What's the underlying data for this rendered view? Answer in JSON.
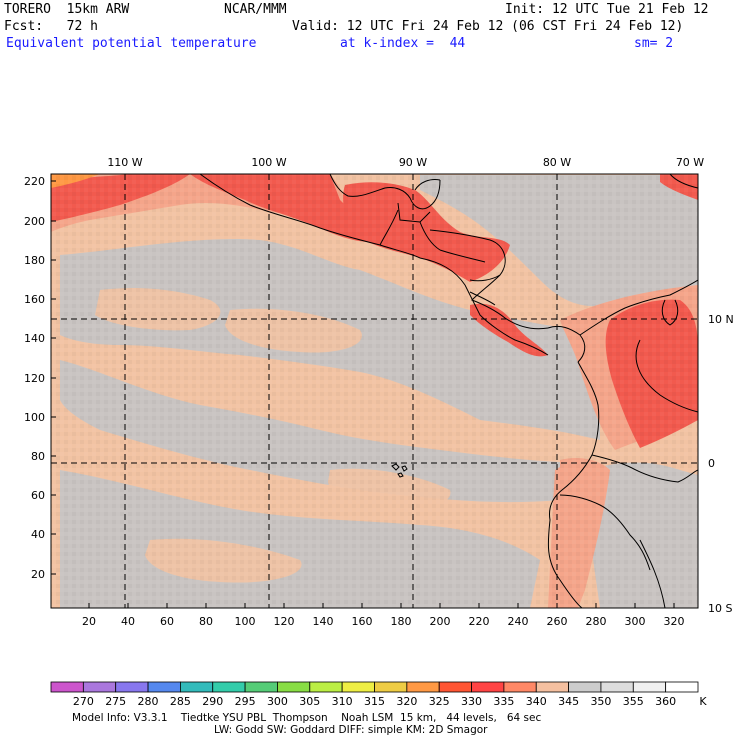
{
  "header": {
    "model": "TORERO  15km ARW",
    "center": "NCAR/MMM",
    "init": "Init: 12 UTC Tue 21 Feb 12",
    "fcst": "Fcst:   72 h",
    "valid": "Valid: 12 UTC Fri 24 Feb 12 (06 CST Fri 24 Feb 12)",
    "field": "Equivalent potential temperature",
    "level": "at k-index =  44",
    "smooth": "sm= 2"
  },
  "map": {
    "top_lon_labels": [
      "110 W",
      "100 W",
      "90 W",
      "80 W",
      "70 W"
    ],
    "right_lat_labels": [
      "10 N",
      "0",
      "10 S"
    ],
    "left_ticks": [
      "220",
      "200",
      "180",
      "160",
      "140",
      "120",
      "100",
      "80",
      "60",
      "40",
      "20"
    ],
    "bottom_ticks": [
      "20",
      "40",
      "60",
      "80",
      "100",
      "120",
      "140",
      "160",
      "180",
      "200",
      "220",
      "240",
      "260",
      "280",
      "300",
      "320"
    ]
  },
  "colorbar": {
    "labels": [
      "270",
      "275",
      "280",
      "285",
      "290",
      "295",
      "300",
      "305",
      "310",
      "315",
      "320",
      "325",
      "330",
      "335",
      "340",
      "345",
      "350",
      "355",
      "360"
    ],
    "unit": "K",
    "colors": [
      "#cc55cc",
      "#aa77dd",
      "#8877ee",
      "#5588ee",
      "#33bbbb",
      "#33ccaa",
      "#55cc77",
      "#88dd44",
      "#bbee44",
      "#eeee44",
      "#eecc44",
      "#ff9944",
      "#ff5533",
      "#ff4444",
      "#ff8866",
      "#f5c0a0",
      "#cccccc",
      "#dddddd",
      "#f0f0f0",
      "#ffffff"
    ]
  },
  "footer": {
    "line1": "Model Info: V3.3.1    Tiedtke YSU PBL  Thompson    Noah LSM  15 km,   44 levels,   64 sec",
    "line2": "LW: Godd SW: Goddard DIFF: simple KM: 2D Smagor"
  }
}
